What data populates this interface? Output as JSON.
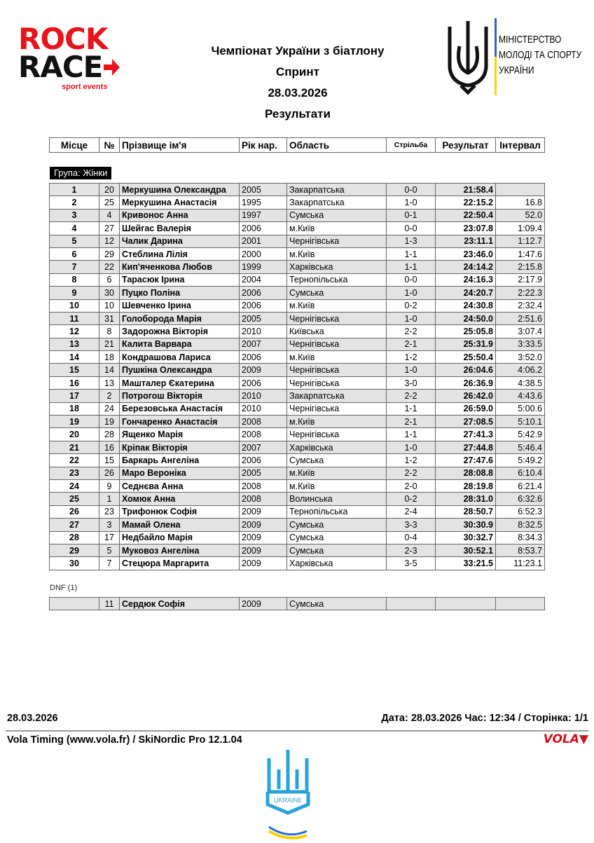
{
  "logos": {
    "rockrace": {
      "line1": "ROCK",
      "line2": "RACE",
      "sub": "sport events",
      "color": "#e8141b"
    },
    "ministry": {
      "lines": [
        "МІНІСТЕРСТВО",
        "МОЛОДІ ТА СПОРТУ",
        "УКРАЇНИ"
      ]
    },
    "vola": "VOLA",
    "federation": "UKRAINE"
  },
  "header": {
    "title": "Чемпіонат України з біатлону",
    "discipline": "Спринт",
    "date": "28.03.2026",
    "subtitle": "Результати"
  },
  "columns": [
    "Місце",
    "№",
    "Прізвище ім'я",
    "Рік нар.",
    "Область",
    "Стрільба",
    "Результат",
    "Інтервал"
  ],
  "group_label": "Група: Жінки",
  "results": [
    [
      "1",
      "20",
      "Меркушина Олександра",
      "2005",
      "Закарпатська",
      "0-0",
      "21:58.4",
      ""
    ],
    [
      "2",
      "25",
      "Меркушина Анастасія",
      "1995",
      "Закарпатська",
      "1-0",
      "22:15.2",
      "16.8"
    ],
    [
      "3",
      "4",
      "Кривонос Анна",
      "1997",
      "Сумська",
      "0-1",
      "22:50.4",
      "52.0"
    ],
    [
      "4",
      "27",
      "Шейгас Валерія",
      "2006",
      "м.Київ",
      "0-0",
      "23:07.8",
      "1:09.4"
    ],
    [
      "5",
      "12",
      "Чалик Дарина",
      "2001",
      "Чернігівська",
      "1-3",
      "23:11.1",
      "1:12.7"
    ],
    [
      "6",
      "29",
      "Стеблина Лілія",
      "2000",
      "м.Київ",
      "1-1",
      "23:46.0",
      "1:47.6"
    ],
    [
      "7",
      "22",
      "Кип'яченкова Любов",
      "1999",
      "Харківська",
      "1-1",
      "24:14.2",
      "2:15.8"
    ],
    [
      "8",
      "6",
      "Тарасюк Ірина",
      "2004",
      "Тернопільська",
      "0-0",
      "24:16.3",
      "2:17.9"
    ],
    [
      "9",
      "30",
      "Пуцко Поліна",
      "2006",
      "Сумська",
      "1-0",
      "24:20.7",
      "2:22.3"
    ],
    [
      "10",
      "10",
      "Шевченко Ірина",
      "2006",
      "м.Київ",
      "0-2",
      "24:30.8",
      "2:32.4"
    ],
    [
      "11",
      "31",
      "Голоборода Марія",
      "2005",
      "Чернігівська",
      "1-0",
      "24:50.0",
      "2:51.6"
    ],
    [
      "12",
      "8",
      "Задорожна Вікторія",
      "2010",
      "Київська",
      "2-2",
      "25:05.8",
      "3:07.4"
    ],
    [
      "13",
      "21",
      "Калита Варвара",
      "2007",
      "Чернігівська",
      "2-1",
      "25:31.9",
      "3:33.5"
    ],
    [
      "14",
      "18",
      "Кондрашова Лариса",
      "2006",
      "м.Київ",
      "1-2",
      "25:50.4",
      "3:52.0"
    ],
    [
      "15",
      "14",
      "Пушкіна Олександра",
      "2009",
      "Чернігівська",
      "1-0",
      "26:04.6",
      "4:06.2"
    ],
    [
      "16",
      "13",
      "Машталер Єкатерина",
      "2006",
      "Чернігівська",
      "3-0",
      "26:36.9",
      "4:38.5"
    ],
    [
      "17",
      "2",
      "Потрогош Вікторія",
      "2010",
      "Закарпатська",
      "2-2",
      "26:42.0",
      "4:43.6"
    ],
    [
      "18",
      "24",
      "Березовська Анастасія",
      "2010",
      "Чернігівська",
      "1-1",
      "26:59.0",
      "5:00.6"
    ],
    [
      "19",
      "19",
      "Гончаренко Анастасія",
      "2008",
      "м.Київ",
      "2-1",
      "27:08.5",
      "5:10.1"
    ],
    [
      "20",
      "28",
      "Ященко Марія",
      "2008",
      "Чернігівська",
      "1-1",
      "27:41.3",
      "5:42.9"
    ],
    [
      "21",
      "16",
      "Кріпак Вікторія",
      "2007",
      "Харківська",
      "1-0",
      "27:44.8",
      "5:46.4"
    ],
    [
      "22",
      "15",
      "Баркарь Ангеліна",
      "2006",
      "Сумська",
      "1-2",
      "27:47.6",
      "5:49.2"
    ],
    [
      "23",
      "26",
      "Маро Вероніка",
      "2005",
      "м.Київ",
      "2-2",
      "28:08.8",
      "6:10.4"
    ],
    [
      "24",
      "9",
      "Седнєва Анна",
      "2008",
      "м.Київ",
      "2-0",
      "28:19.8",
      "6:21.4"
    ],
    [
      "25",
      "1",
      "Хомюк Анна",
      "2008",
      "Волинська",
      "0-2",
      "28:31.0",
      "6:32.6"
    ],
    [
      "26",
      "23",
      "Трифонюк Софія",
      "2009",
      "Тернопільська",
      "2-4",
      "28:50.7",
      "6:52.3"
    ],
    [
      "27",
      "3",
      "Мамай Олена",
      "2009",
      "Сумська",
      "3-3",
      "30:30.9",
      "8:32.5"
    ],
    [
      "28",
      "17",
      "Недбайло Марія",
      "2009",
      "Сумська",
      "0-4",
      "30:32.7",
      "8:34.3"
    ],
    [
      "29",
      "5",
      "Муковоз Ангеліна",
      "2009",
      "Сумська",
      "2-3",
      "30:52.1",
      "8:53.7"
    ],
    [
      "30",
      "7",
      "Стецюра Маргарита",
      "2009",
      "Харківська",
      "3-5",
      "33:21.5",
      "11:23.1"
    ]
  ],
  "dnf_label": "DNF (1)",
  "dnf": [
    [
      "",
      "11",
      "Сердюк Софія",
      "2009",
      "Сумська",
      "",
      "",
      ""
    ]
  ],
  "footer": {
    "date": "28.03.2026",
    "info": "Дата: 28.03.2026 Час: 12:34 / Сторінка: 1/1",
    "software": "Vola Timing (www.vola.fr) / SkiNordic Pro 12.1.04"
  }
}
